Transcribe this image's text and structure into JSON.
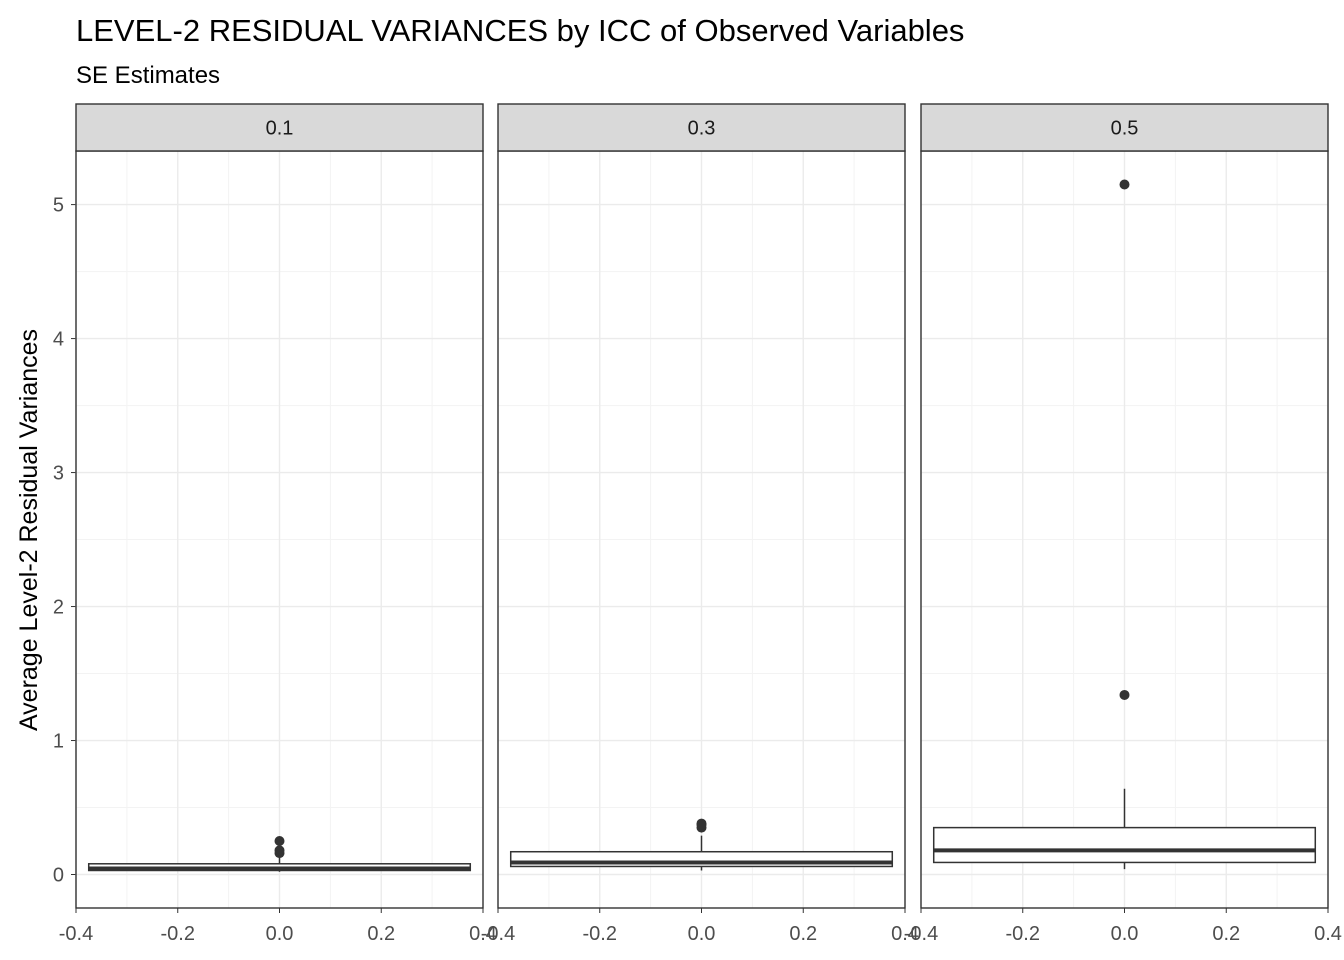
{
  "chart_data": {
    "type": "boxplot",
    "title": "LEVEL-2 RESIDUAL VARIANCES by ICC of Observed Variables",
    "subtitle": "SE Estimates",
    "xlabel": "",
    "ylabel": "Average Level-2 Residual Variances",
    "xlim": [
      -0.4,
      0.4
    ],
    "ylim": [
      -0.25,
      5.4
    ],
    "x_ticks": [
      -0.4,
      -0.2,
      0.0,
      0.2,
      0.4
    ],
    "x_tick_labels": [
      "-0.4",
      "-0.2",
      "0.0",
      "0.2",
      "0.4"
    ],
    "y_ticks": [
      0,
      1,
      2,
      3,
      4,
      5
    ],
    "y_tick_labels": [
      "0",
      "1",
      "2",
      "3",
      "4",
      "5"
    ],
    "grid": true,
    "legend": "none",
    "facets": [
      {
        "label": "0.1",
        "box": {
          "x": 0.0,
          "width": 0.75,
          "lower_whisker": 0.02,
          "q1": 0.03,
          "median": 0.045,
          "q3": 0.08,
          "upper_whisker": 0.13
        },
        "outliers": [
          0.16,
          0.18,
          0.25
        ]
      },
      {
        "label": "0.3",
        "box": {
          "x": 0.0,
          "width": 0.75,
          "lower_whisker": 0.03,
          "q1": 0.06,
          "median": 0.09,
          "q3": 0.17,
          "upper_whisker": 0.29
        },
        "outliers": [
          0.35,
          0.37,
          0.38
        ]
      },
      {
        "label": "0.5",
        "box": {
          "x": 0.0,
          "width": 0.75,
          "lower_whisker": 0.04,
          "q1": 0.09,
          "median": 0.18,
          "q3": 0.35,
          "upper_whisker": 0.64
        },
        "outliers": [
          1.34,
          5.15
        ]
      }
    ]
  },
  "colors": {
    "panel_border": "#333333",
    "strip_fill": "#d9d9d9",
    "grid_major": "#ebebeb",
    "grid_minor": "#f3f3f3",
    "box_line": "#333333",
    "box_fill": "#ffffff",
    "outlier": "#333333",
    "tick_text": "#4d4d4d"
  }
}
